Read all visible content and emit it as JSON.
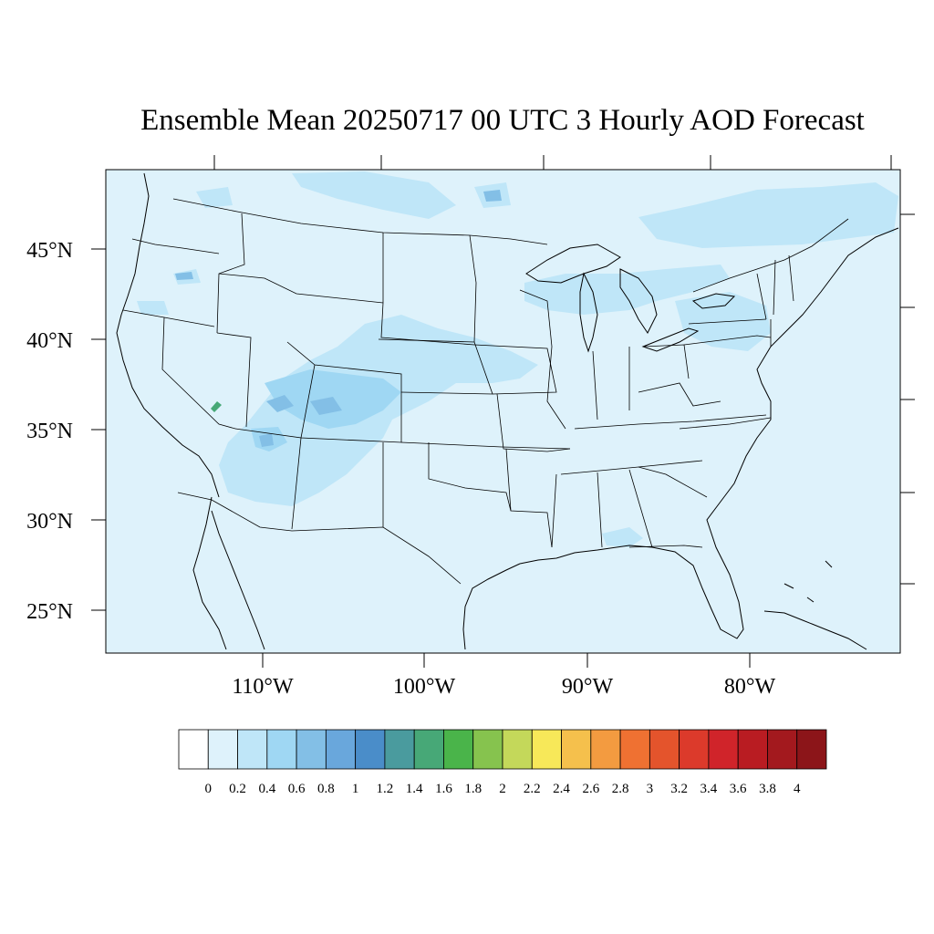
{
  "title": "Ensemble Mean 20250717 00 UTC 3 Hourly AOD Forecast",
  "map": {
    "background_color": "#def2fb",
    "lat_labels": [
      {
        "label": "45°N",
        "lat": 45
      },
      {
        "label": "40°N",
        "lat": 40
      },
      {
        "label": "35°N",
        "lat": 35
      },
      {
        "label": "30°N",
        "lat": 30
      },
      {
        "label": "25°N",
        "lat": 25
      }
    ],
    "lon_labels": [
      {
        "label": "110°W",
        "lon": -110
      },
      {
        "label": "100°W",
        "lon": -100
      },
      {
        "label": "90°W",
        "lon": -90
      },
      {
        "label": "80°W",
        "lon": -80
      }
    ]
  },
  "colorbar": {
    "colors": [
      "#ffffff",
      "#def2fb",
      "#bfe6f8",
      "#9fd7f3",
      "#83bfe6",
      "#69a7dc",
      "#4a8dc9",
      "#4a9b9e",
      "#47a877",
      "#4ab44a",
      "#86c34e",
      "#c4d85a",
      "#f7e859",
      "#f5c04c",
      "#f39b40",
      "#ef7132",
      "#e4542c",
      "#dc3a2b",
      "#d0242a",
      "#b91c22",
      "#a3191e",
      "#8c1519"
    ],
    "labels": [
      "0",
      "0.2",
      "0.4",
      "0.6",
      "0.8",
      "1",
      "1.2",
      "1.4",
      "1.6",
      "1.8",
      "2",
      "2.2",
      "2.4",
      "2.6",
      "2.8",
      "3",
      "3.2",
      "3.4",
      "3.6",
      "3.8",
      "4"
    ]
  }
}
